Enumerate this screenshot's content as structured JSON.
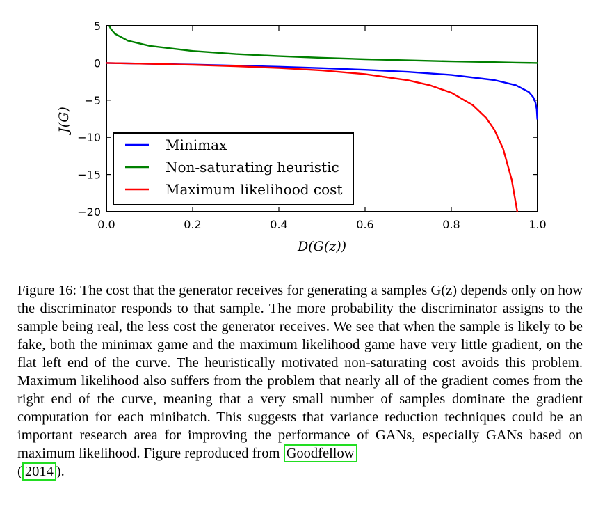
{
  "figure": {
    "caption_label": "Figure 16:",
    "caption_text": "The cost that the generator receives for generating a samples G(z) depends only on how the discriminator responds to that sample. The more probability the discriminator assigns to the sample being real, the less cost the generator receives. We see that when the sample is likely to be fake, both the minimax game and the maximum likelihood game have very little gradient, on the flat left end of the curve. The heuristically motivated non-saturating cost avoids this problem. Maximum likelihood also suffers from the problem that nearly all of the gradient comes from the right end of the curve, meaning that a very small number of samples dominate the gradient computation for each minibatch. This suggests that variance reduction techniques could be an important research area for improving the performance of GANs, especially GANs based on maximum likelihood. Figure reproduced from",
    "citation_name": "Goodfellow",
    "citation_year": "2014",
    "citation_open": "(",
    "citation_close": ")."
  },
  "chart_data": {
    "type": "line",
    "title": "",
    "xlabel": "D(G(z))",
    "ylabel": "J(G)",
    "xlim": [
      0.0,
      1.0
    ],
    "ylim": [
      -20,
      5
    ],
    "xticks": [
      "0.0",
      "0.2",
      "0.4",
      "0.6",
      "0.8",
      "1.0"
    ],
    "yticks": [
      "5",
      "0",
      "−5",
      "−10",
      "−15",
      "−20"
    ],
    "legend_position": "lower-left",
    "grid": false,
    "series": [
      {
        "name": "Minimax",
        "color": "#0000ff",
        "x": [
          0.0,
          0.1,
          0.2,
          0.3,
          0.4,
          0.5,
          0.6,
          0.7,
          0.8,
          0.9,
          0.95,
          0.98,
          0.99,
          0.995,
          0.998,
          0.9995
        ],
        "y": [
          0.0,
          -0.11,
          -0.22,
          -0.36,
          -0.51,
          -0.69,
          -0.92,
          -1.2,
          -1.61,
          -2.3,
          -3.0,
          -3.91,
          -4.61,
          -5.3,
          -6.21,
          -7.6
        ]
      },
      {
        "name": "Non-saturating heuristic",
        "color": "#008000",
        "x": [
          0.0067,
          0.01,
          0.02,
          0.05,
          0.1,
          0.2,
          0.3,
          0.4,
          0.5,
          0.6,
          0.7,
          0.8,
          0.9,
          0.95,
          1.0
        ],
        "y": [
          5.0,
          4.61,
          3.91,
          3.0,
          2.3,
          1.61,
          1.2,
          0.92,
          0.69,
          0.51,
          0.36,
          0.22,
          0.11,
          0.05,
          0.0
        ]
      },
      {
        "name": "Maximum likelihood cost",
        "color": "#ff0000",
        "x": [
          0.0,
          0.1,
          0.2,
          0.3,
          0.4,
          0.5,
          0.6,
          0.7,
          0.75,
          0.8,
          0.85,
          0.88,
          0.9,
          0.92,
          0.94,
          0.95,
          0.953
        ],
        "y": [
          0.0,
          -0.11,
          -0.25,
          -0.43,
          -0.67,
          -1.0,
          -1.5,
          -2.33,
          -3.0,
          -4.0,
          -5.67,
          -7.33,
          -9.0,
          -11.5,
          -15.67,
          -19.0,
          -20.0
        ]
      }
    ]
  }
}
